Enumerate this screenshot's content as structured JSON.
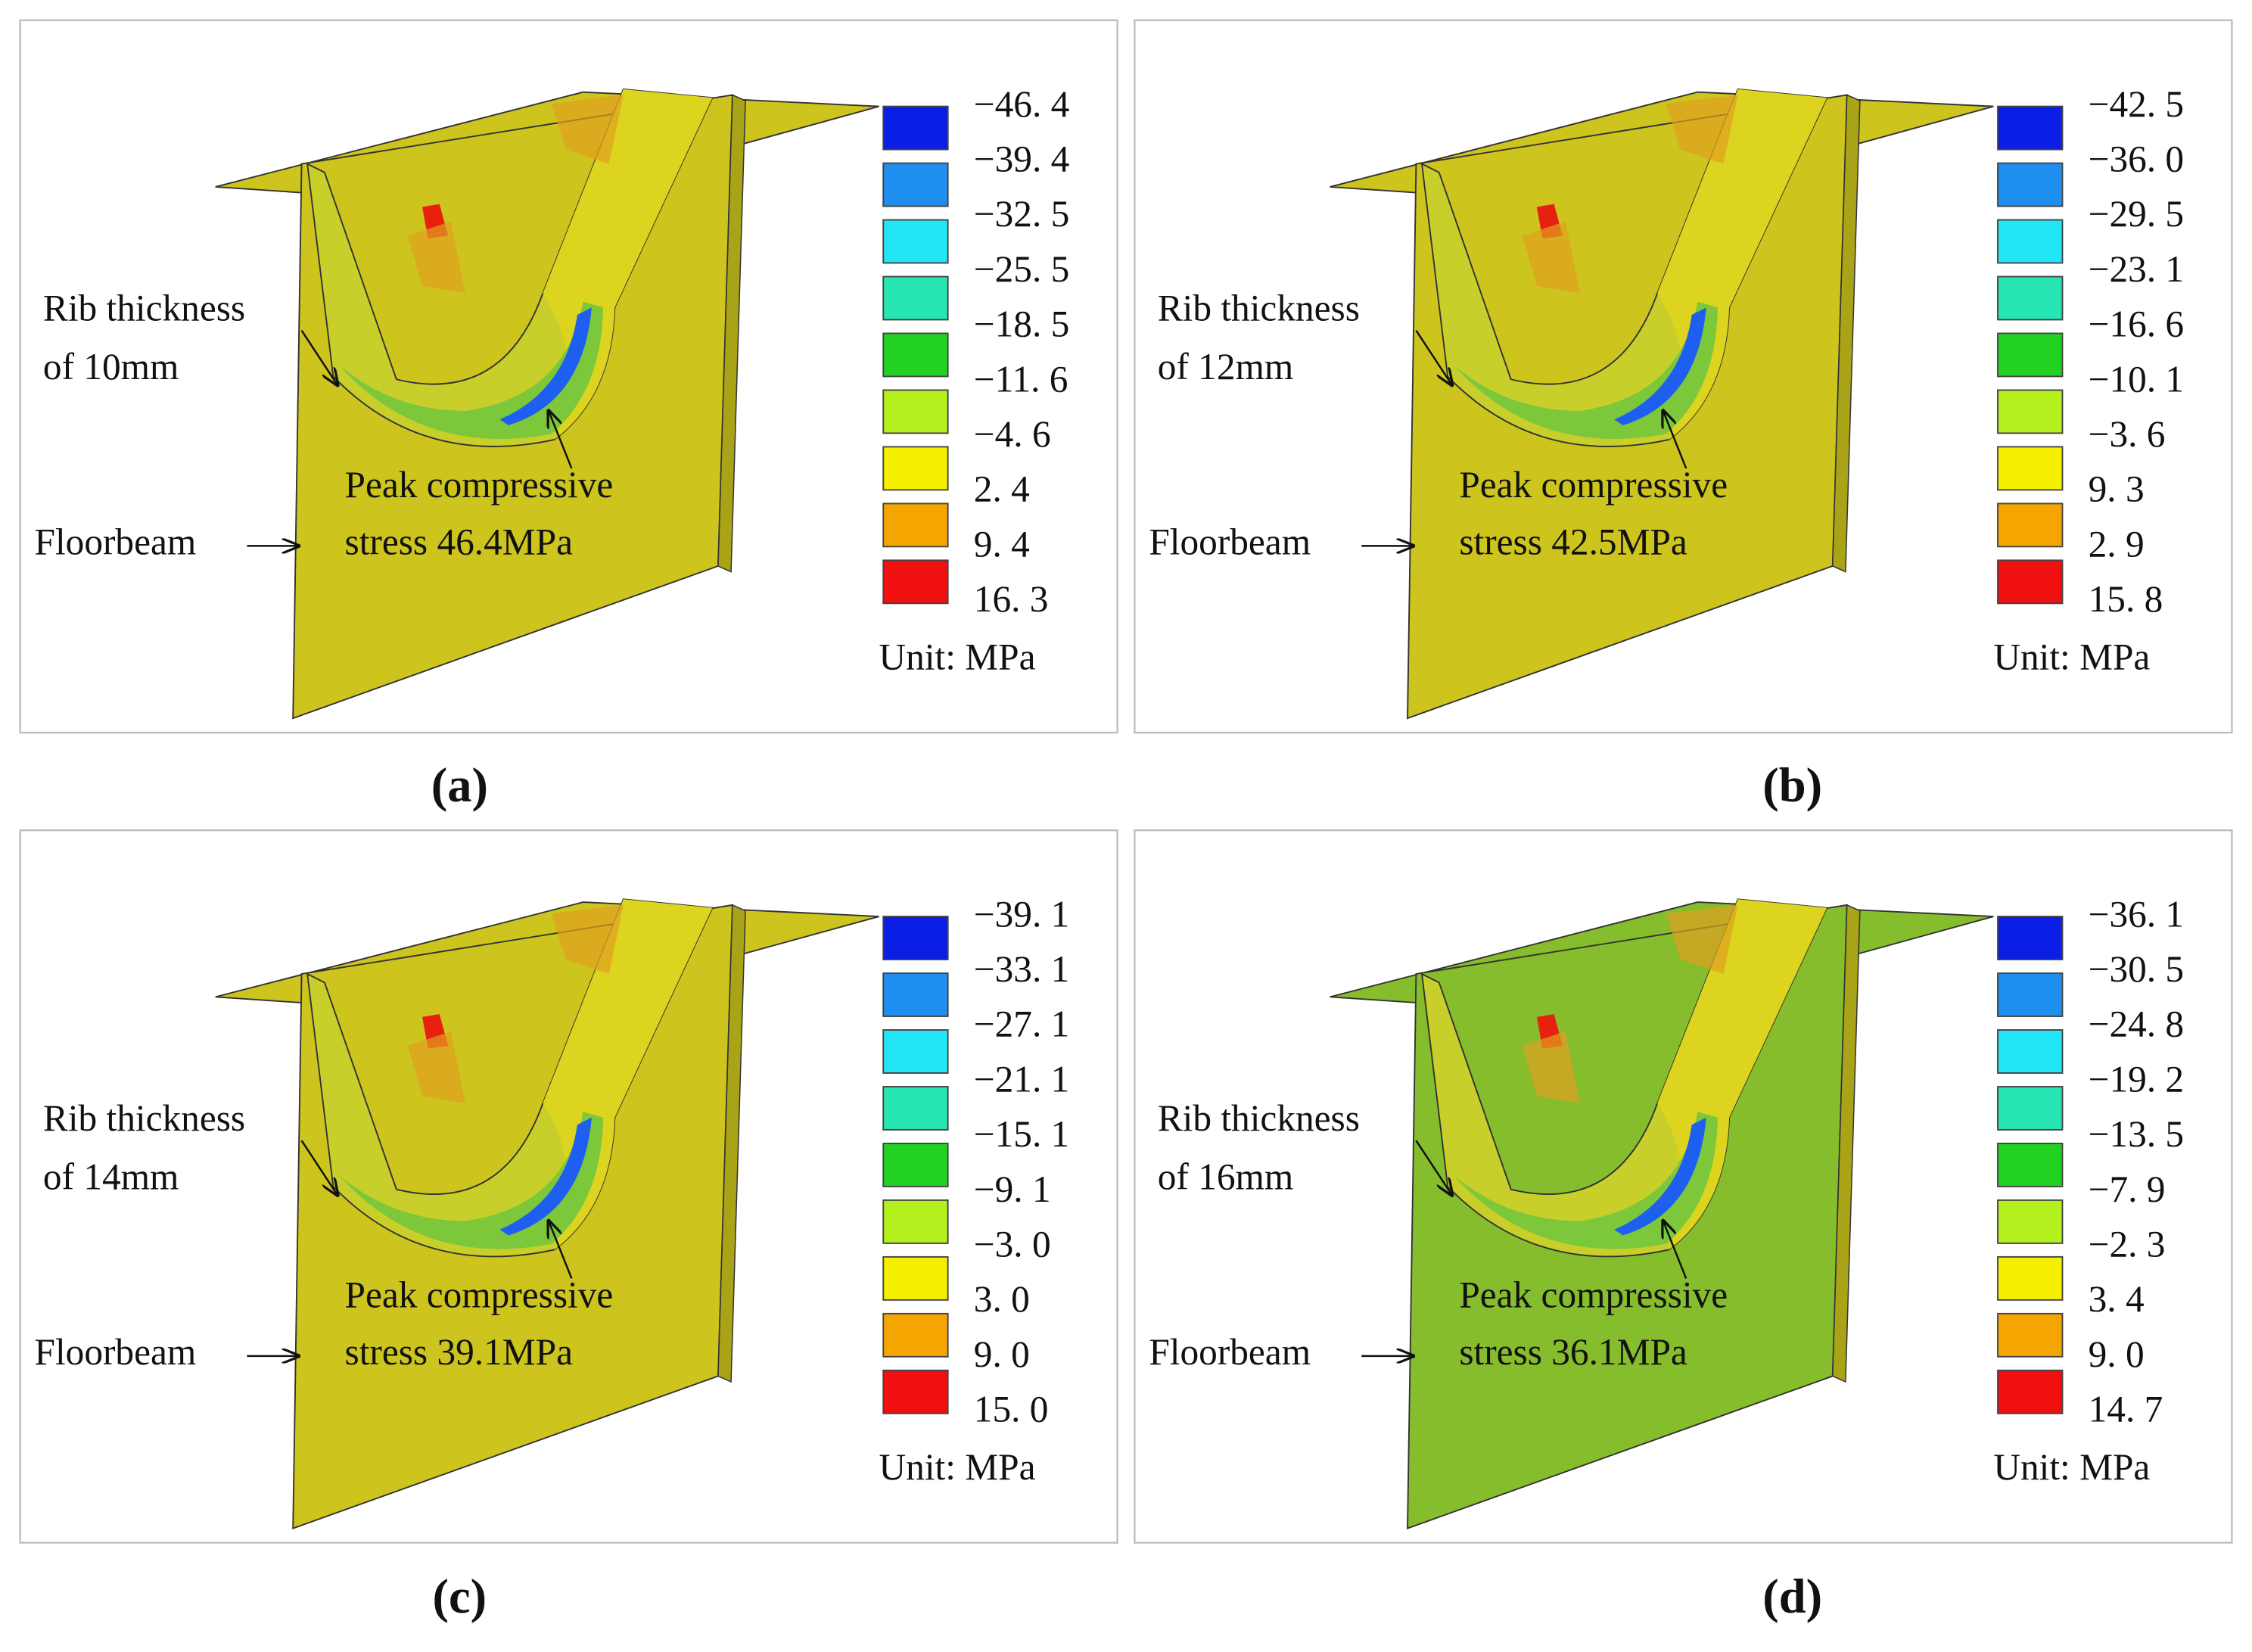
{
  "panels": [
    {
      "caption": "(a)",
      "rib_label": [
        "Rib thickness",
        "of 10mm"
      ],
      "floorbeam_label": "Floorbeam",
      "peak_label": [
        "Peak compressive",
        "stress 46.4MPa"
      ],
      "legend": {
        "values": [
          "−46. 4",
          "−39. 4",
          "−32. 5",
          "−25. 5",
          "−18. 5",
          "−11. 6",
          "−4. 6",
          "2. 4",
          "9. 4",
          "16. 3"
        ],
        "unit": "Unit: MPa"
      }
    },
    {
      "caption": "(b)",
      "rib_label": [
        "Rib thickness",
        "of 12mm"
      ],
      "floorbeam_label": "Floorbeam",
      "peak_label": [
        "Peak compressive",
        "stress 42.5MPa"
      ],
      "legend": {
        "values": [
          "−42. 5",
          "−36. 0",
          "−29. 5",
          "−23. 1",
          "−16. 6",
          "−10. 1",
          "−3. 6",
          "9. 3",
          "2. 9",
          "15. 8"
        ],
        "unit": "Unit: MPa"
      }
    },
    {
      "caption": "(c)",
      "rib_label": [
        "Rib thickness",
        "of 14mm"
      ],
      "floorbeam_label": "Floorbeam",
      "peak_label": [
        "Peak compressive",
        "stress 39.1MPa"
      ],
      "legend": {
        "values": [
          "−39. 1",
          "−33. 1",
          "−27. 1",
          "−21. 1",
          "−15. 1",
          "−9. 1",
          "−3. 0",
          "3. 0",
          "9. 0",
          "15. 0"
        ],
        "unit": "Unit: MPa"
      }
    },
    {
      "caption": "(d)",
      "rib_label": [
        "Rib thickness",
        "of 16mm"
      ],
      "floorbeam_label": "Floorbeam",
      "peak_label": [
        "Peak compressive",
        "stress 36.1MPa"
      ],
      "legend": {
        "values": [
          "−36. 1",
          "−30. 5",
          "−24. 8",
          "−19. 2",
          "−13. 5",
          "−7. 9",
          "−2. 3",
          "3. 4",
          "9. 0",
          "14. 7"
        ],
        "unit": "Unit: MPa"
      }
    }
  ]
}
